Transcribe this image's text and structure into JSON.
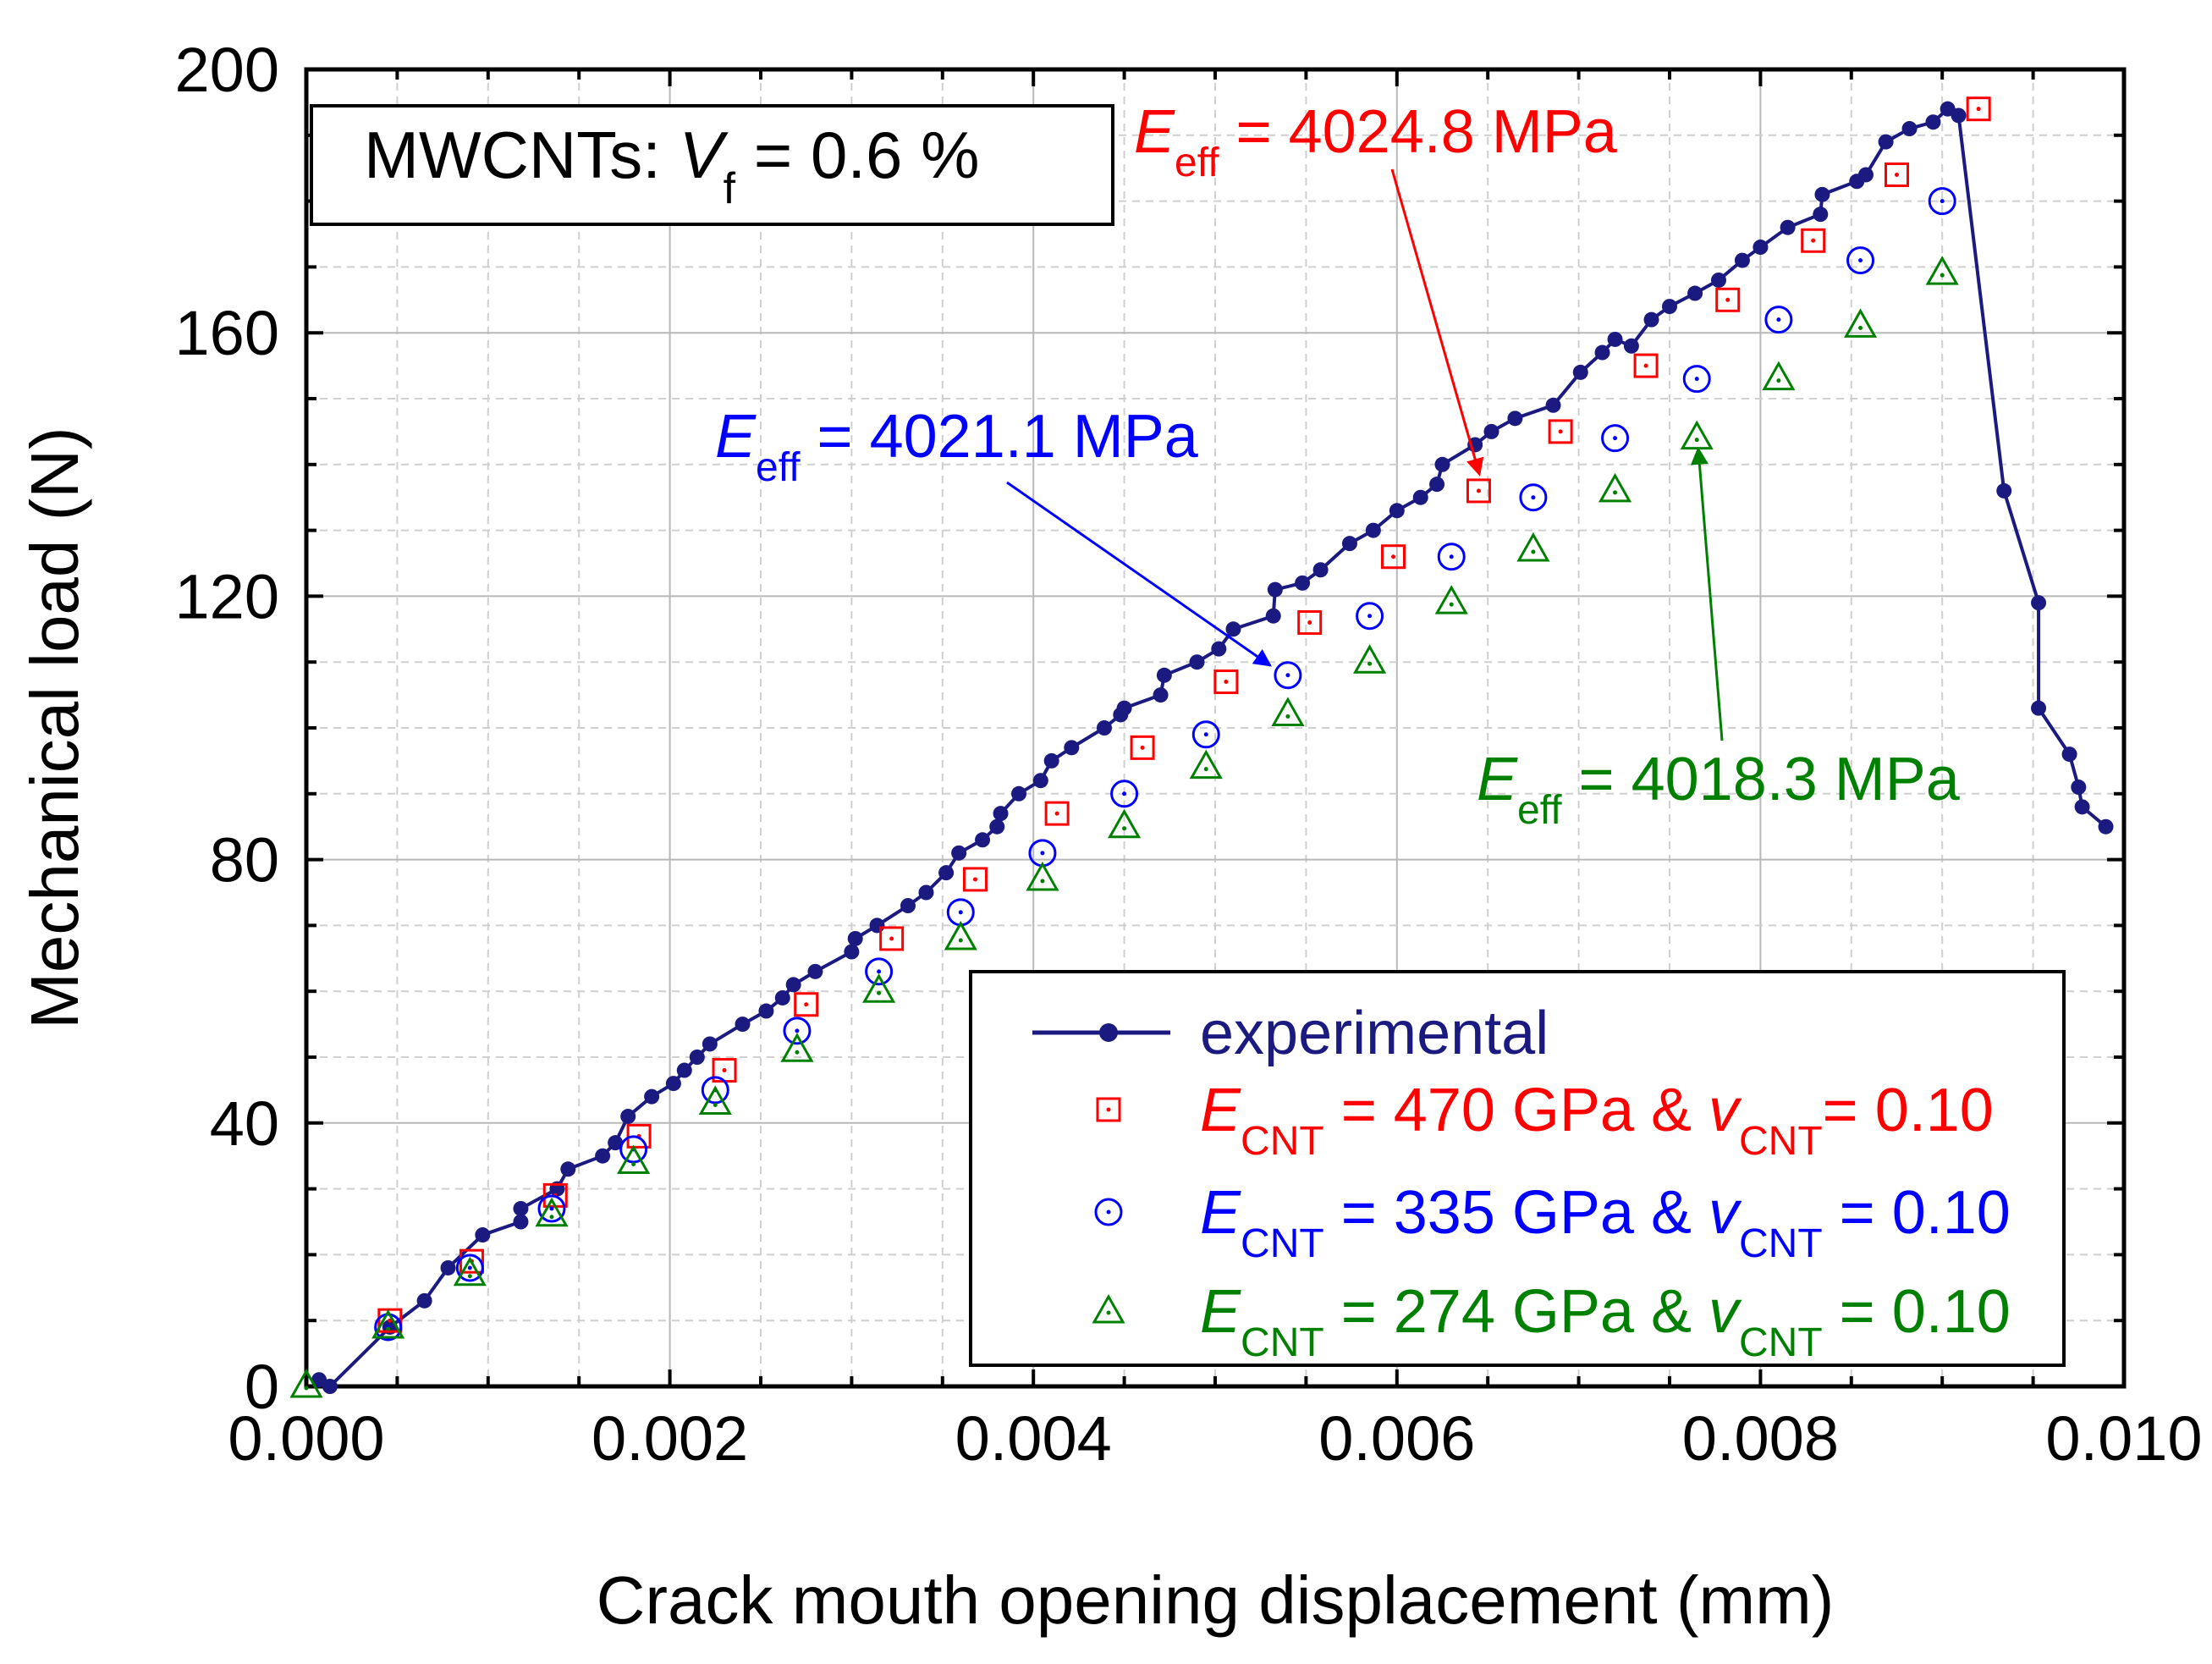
{
  "chart_data": {
    "type": "scatter",
    "xlabel": "Crack mouth opening displacement (mm)",
    "ylabel": "Mechanical load (N)",
    "xlim": [
      0,
      0.01
    ],
    "ylim": [
      0,
      200
    ],
    "grid": true,
    "x_ticks": [
      "0.000",
      "0.002",
      "0.004",
      "0.006",
      "0.008",
      "0.010"
    ],
    "x_tick_values": [
      0,
      0.002,
      0.004,
      0.006,
      0.008,
      0.01
    ],
    "y_ticks": [
      "0",
      "40",
      "80",
      "120",
      "160",
      "200"
    ],
    "y_tick_values": [
      0,
      40,
      80,
      120,
      160,
      200
    ],
    "infobox": {
      "prefix": "MWCNTs: ",
      "symbol": "V",
      "sub": "f",
      "suffix": " = 0.6 %"
    },
    "legend_position": "bottom-right",
    "series": [
      {
        "name": "experimental",
        "style": "line-dot",
        "color": "#1a1a80",
        "points": [
          [
            7e-05,
            1
          ],
          [
            0.00013,
            0
          ],
          [
            0.00046,
            9
          ],
          [
            0.00065,
            13
          ],
          [
            0.00078,
            18
          ],
          [
            0.00097,
            23
          ],
          [
            0.00118,
            25
          ],
          [
            0.00118,
            27
          ],
          [
            0.00138,
            30
          ],
          [
            0.00144,
            33
          ],
          [
            0.00163,
            35
          ],
          [
            0.0017,
            37
          ],
          [
            0.00177,
            41
          ],
          [
            0.0019,
            44
          ],
          [
            0.00202,
            46
          ],
          [
            0.00208,
            48
          ],
          [
            0.00215,
            50
          ],
          [
            0.00222,
            52
          ],
          [
            0.0024,
            55
          ],
          [
            0.00253,
            57
          ],
          [
            0.00262,
            59
          ],
          [
            0.00268,
            61
          ],
          [
            0.0028,
            63
          ],
          [
            0.003,
            66
          ],
          [
            0.00302,
            68
          ],
          [
            0.00314,
            70
          ],
          [
            0.00331,
            73
          ],
          [
            0.00341,
            75
          ],
          [
            0.00352,
            78
          ],
          [
            0.00359,
            81
          ],
          [
            0.00372,
            83
          ],
          [
            0.0038,
            85
          ],
          [
            0.00382,
            87
          ],
          [
            0.00392,
            90
          ],
          [
            0.00404,
            92
          ],
          [
            0.0041,
            95
          ],
          [
            0.00421,
            97
          ],
          [
            0.00439,
            100
          ],
          [
            0.00448,
            102
          ],
          [
            0.0045,
            103
          ],
          [
            0.0047,
            105
          ],
          [
            0.00472,
            108
          ],
          [
            0.0049,
            110
          ],
          [
            0.00502,
            112
          ],
          [
            0.0051,
            115
          ],
          [
            0.00532,
            117
          ],
          [
            0.00533,
            121
          ],
          [
            0.00548,
            122
          ],
          [
            0.00558,
            124
          ],
          [
            0.00574,
            128
          ],
          [
            0.00587,
            130
          ],
          [
            0.006,
            133
          ],
          [
            0.00613,
            135
          ],
          [
            0.00622,
            137
          ],
          [
            0.00625,
            140
          ],
          [
            0.00643,
            143
          ],
          [
            0.00652,
            145
          ],
          [
            0.00665,
            147
          ],
          [
            0.00686,
            149
          ],
          [
            0.00701,
            154
          ],
          [
            0.00713,
            157
          ],
          [
            0.0072,
            159
          ],
          [
            0.00729,
            158
          ],
          [
            0.0074,
            162
          ],
          [
            0.0075,
            164
          ],
          [
            0.00764,
            166
          ],
          [
            0.00777,
            168
          ],
          [
            0.0079,
            171
          ],
          [
            0.008,
            173
          ],
          [
            0.00815,
            176
          ],
          [
            0.00833,
            178
          ],
          [
            0.00834,
            181
          ],
          [
            0.00853,
            183
          ],
          [
            0.00858,
            184
          ],
          [
            0.00869,
            189
          ],
          [
            0.00882,
            191
          ],
          [
            0.00895,
            192
          ],
          [
            0.00903,
            194
          ],
          [
            0.00909,
            193
          ],
          [
            0.00934,
            136
          ],
          [
            0.00953,
            119
          ],
          [
            0.00953,
            103
          ],
          [
            0.0097,
            96
          ],
          [
            0.00975,
            91
          ],
          [
            0.00977,
            88
          ],
          [
            0.0099,
            85
          ]
        ]
      },
      {
        "name_parts": [
          "E",
          "CNT",
          " = 470 GPa & ",
          "v",
          "CNT",
          "= 0.10"
        ],
        "style": "square",
        "color": "#ff0000",
        "points": [
          [
            0.00046,
            10
          ],
          [
            0.00091,
            19
          ],
          [
            0.00137,
            29
          ],
          [
            0.00183,
            38
          ],
          [
            0.0023,
            48
          ],
          [
            0.00275,
            58
          ],
          [
            0.00322,
            68
          ],
          [
            0.00368,
            77
          ],
          [
            0.00413,
            87
          ],
          [
            0.0046,
            97
          ],
          [
            0.00506,
            107
          ],
          [
            0.00552,
            116
          ],
          [
            0.00598,
            126
          ],
          [
            0.00645,
            136
          ],
          [
            0.0069,
            145
          ],
          [
            0.00737,
            155
          ],
          [
            0.00782,
            165
          ],
          [
            0.00829,
            174
          ],
          [
            0.00875,
            184
          ],
          [
            0.0092,
            194
          ]
        ]
      },
      {
        "name_parts": [
          "E",
          "CNT",
          " = 335 GPa & ",
          "v",
          "CNT",
          " = 0.10"
        ],
        "style": "circle",
        "color": "#0000ff",
        "points": [
          [
            0.00045,
            9
          ],
          [
            0.0009,
            18
          ],
          [
            0.00135,
            27
          ],
          [
            0.0018,
            36
          ],
          [
            0.00225,
            45
          ],
          [
            0.0027,
            54
          ],
          [
            0.00315,
            63
          ],
          [
            0.0036,
            72
          ],
          [
            0.00405,
            81
          ],
          [
            0.0045,
            90
          ],
          [
            0.00495,
            99
          ],
          [
            0.0054,
            108
          ],
          [
            0.00585,
            117
          ],
          [
            0.0063,
            126
          ],
          [
            0.00675,
            135
          ],
          [
            0.0072,
            144
          ],
          [
            0.00765,
            153
          ],
          [
            0.0081,
            162
          ],
          [
            0.00855,
            171
          ],
          [
            0.009,
            180
          ]
        ]
      },
      {
        "name_parts": [
          "E",
          "CNT",
          " = 274 GPa & ",
          "v",
          "CNT",
          " = 0.10"
        ],
        "style": "triangle",
        "color": "#008000",
        "points": [
          [
            0.0,
            0
          ],
          [
            0.00045,
            9
          ],
          [
            0.0009,
            17
          ],
          [
            0.00135,
            26
          ],
          [
            0.0018,
            34
          ],
          [
            0.00225,
            43
          ],
          [
            0.0027,
            51
          ],
          [
            0.00315,
            60
          ],
          [
            0.0036,
            68
          ],
          [
            0.00405,
            77
          ],
          [
            0.0045,
            85
          ],
          [
            0.00495,
            94
          ],
          [
            0.0054,
            102
          ],
          [
            0.00585,
            110
          ],
          [
            0.0063,
            119
          ],
          [
            0.00675,
            127
          ],
          [
            0.0072,
            136
          ],
          [
            0.00765,
            144
          ],
          [
            0.0081,
            153
          ],
          [
            0.00855,
            161
          ],
          [
            0.009,
            169
          ]
        ]
      }
    ],
    "annotations": [
      {
        "id": "red",
        "color": "#ff0000",
        "symbol": "E",
        "sub": "eff",
        "text": " = 4024.8 MPa",
        "target": [
          0.00648,
          136
        ]
      },
      {
        "id": "blue",
        "color": "#0000ff",
        "symbol": "E",
        "sub": "eff",
        "text": " = 4021.1 MPa",
        "target": [
          0.00538,
          108
        ]
      },
      {
        "id": "green",
        "color": "#008000",
        "symbol": "E",
        "sub": "eff",
        "text": " = 4018.3 MPa",
        "target": [
          0.00765,
          145
        ]
      }
    ]
  }
}
